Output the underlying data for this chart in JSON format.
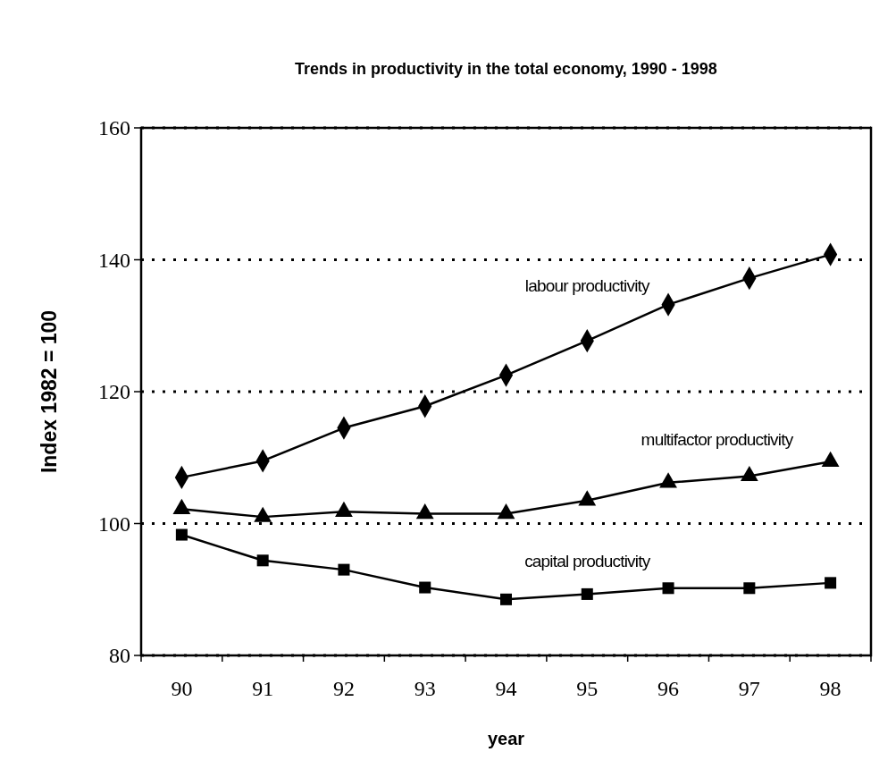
{
  "chart_data": {
    "type": "line",
    "title": "Trends in productivity in the total economy, 1990 - 1998",
    "xlabel": "year",
    "ylabel": "Index 1982 = 100",
    "categories": [
      "90",
      "91",
      "92",
      "93",
      "94",
      "95",
      "96",
      "97",
      "98"
    ],
    "series": [
      {
        "name": "labour productivity",
        "color": "#000000",
        "marker": "diamond",
        "values": [
          107,
          109.5,
          114.5,
          117.8,
          122.5,
          127.7,
          133.2,
          137.2,
          140.8
        ]
      },
      {
        "name": "multifactor productivity",
        "color": "#000000",
        "marker": "triangle",
        "values": [
          102.2,
          101,
          101.8,
          101.5,
          101.5,
          103.5,
          106.2,
          107.2,
          109.4
        ]
      },
      {
        "name": "capital productivity",
        "color": "#000000",
        "marker": "square",
        "values": [
          98.3,
          94.4,
          93,
          90.3,
          88.5,
          89.3,
          90.2,
          90.2,
          91
        ]
      }
    ],
    "ylim": [
      80,
      160
    ],
    "yticks": [
      80,
      100,
      120,
      140,
      160
    ],
    "grid": "y",
    "line_style": "solid"
  }
}
